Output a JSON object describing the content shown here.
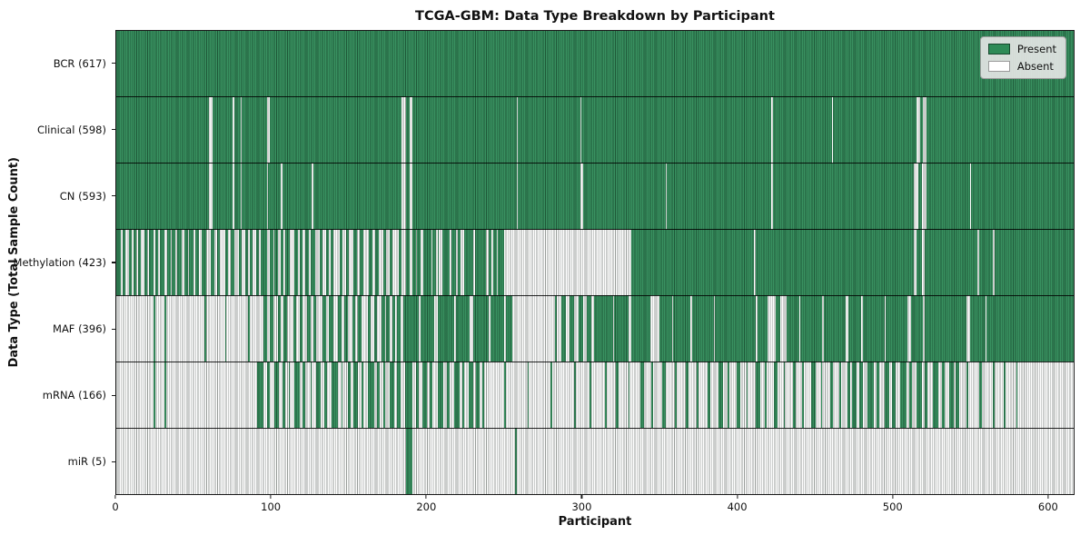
{
  "title": "TCGA-GBM: Data Type Breakdown by Participant",
  "xlabel": "Participant",
  "ylabel": "Data Type (Total Sample Count)",
  "legend": {
    "present_label": "Present",
    "absent_label": "Absent"
  },
  "colors": {
    "present": "#2E8B57",
    "absent": "#FFFFFF",
    "legend_bg": "#E8E8E8",
    "frame": "#1A1A1A"
  },
  "chart_data": {
    "type": "heatmap",
    "title": "TCGA-GBM: Data Type Breakdown by Participant",
    "xlabel": "Participant",
    "ylabel": "Data Type (Total Sample Count)",
    "legend_entries": [
      "Present",
      "Absent"
    ],
    "legend_position": "upper right",
    "n_participants": 617,
    "x_ticks": [
      0,
      100,
      200,
      300,
      400,
      500,
      600
    ],
    "cell_values": "binary presence (1 = Present, 0 = Absent) per participant per data type",
    "rows": [
      {
        "name": "BCR",
        "label": "BCR (617)",
        "present_count": 617,
        "mode": "absent-runs",
        "runs": []
      },
      {
        "name": "Clinical",
        "label": "Clinical (598)",
        "present_count": 598,
        "mode": "absent-runs",
        "runs": [
          [
            60,
            2
          ],
          [
            75,
            1
          ],
          [
            80,
            1
          ],
          [
            97,
            2
          ],
          [
            184,
            3
          ],
          [
            189,
            2
          ],
          [
            258,
            1
          ],
          [
            299,
            1
          ],
          [
            422,
            1
          ],
          [
            461,
            1
          ],
          [
            516,
            2
          ],
          [
            520,
            2
          ]
        ]
      },
      {
        "name": "CN",
        "label": "CN (593)",
        "present_count": 593,
        "mode": "absent-runs",
        "runs": [
          [
            60,
            2
          ],
          [
            75,
            1
          ],
          [
            80,
            1
          ],
          [
            97,
            1
          ],
          [
            106,
            1
          ],
          [
            126,
            1
          ],
          [
            184,
            3
          ],
          [
            189,
            2
          ],
          [
            258,
            1
          ],
          [
            299,
            2
          ],
          [
            354,
            1
          ],
          [
            422,
            1
          ],
          [
            514,
            3
          ],
          [
            519,
            3
          ],
          [
            550,
            1
          ]
        ]
      },
      {
        "name": "Methylation",
        "label": "Methylation (423)",
        "present_count": 423,
        "mode": "absent-runs",
        "runs": [
          [
            3,
            1
          ],
          [
            6,
            2
          ],
          [
            10,
            1
          ],
          [
            13,
            1
          ],
          [
            16,
            2
          ],
          [
            20,
            1
          ],
          [
            24,
            1
          ],
          [
            27,
            1
          ],
          [
            31,
            2
          ],
          [
            35,
            1
          ],
          [
            38,
            1
          ],
          [
            42,
            2
          ],
          [
            46,
            1
          ],
          [
            50,
            1
          ],
          [
            53,
            2
          ],
          [
            58,
            3
          ],
          [
            63,
            2
          ],
          [
            67,
            3
          ],
          [
            72,
            2
          ],
          [
            76,
            3
          ],
          [
            81,
            2
          ],
          [
            85,
            1
          ],
          [
            88,
            2
          ],
          [
            92,
            1
          ],
          [
            97,
            2
          ],
          [
            101,
            1
          ],
          [
            104,
            2
          ],
          [
            108,
            1
          ],
          [
            112,
            3
          ],
          [
            117,
            1
          ],
          [
            120,
            2
          ],
          [
            124,
            1
          ],
          [
            128,
            3
          ],
          [
            133,
            2
          ],
          [
            137,
            1
          ],
          [
            140,
            4
          ],
          [
            146,
            2
          ],
          [
            150,
            3
          ],
          [
            155,
            2
          ],
          [
            159,
            4
          ],
          [
            165,
            2
          ],
          [
            169,
            3
          ],
          [
            174,
            2
          ],
          [
            178,
            4
          ],
          [
            184,
            3
          ],
          [
            189,
            2
          ],
          [
            193,
            1
          ],
          [
            196,
            2
          ],
          [
            203,
            1
          ],
          [
            206,
            1
          ],
          [
            208,
            2
          ],
          [
            215,
            1
          ],
          [
            219,
            1
          ],
          [
            222,
            2
          ],
          [
            230,
            1
          ],
          [
            238,
            2
          ],
          [
            242,
            1
          ],
          [
            245,
            1
          ],
          [
            250,
            82
          ],
          [
            411,
            1
          ],
          [
            514,
            2
          ],
          [
            519,
            2
          ],
          [
            555,
            1
          ],
          [
            565,
            1
          ]
        ]
      },
      {
        "name": "MAF",
        "label": "MAF (396)",
        "present_count": 396,
        "mode": "absent-runs",
        "runs": [
          [
            0,
            24
          ],
          [
            25,
            6
          ],
          [
            32,
            25
          ],
          [
            58,
            12
          ],
          [
            71,
            14
          ],
          [
            86,
            9
          ],
          [
            97,
            2
          ],
          [
            101,
            3
          ],
          [
            106,
            2
          ],
          [
            110,
            4
          ],
          [
            116,
            2
          ],
          [
            120,
            3
          ],
          [
            125,
            2
          ],
          [
            129,
            4
          ],
          [
            135,
            2
          ],
          [
            140,
            3
          ],
          [
            145,
            2
          ],
          [
            149,
            3
          ],
          [
            154,
            2
          ],
          [
            158,
            4
          ],
          [
            164,
            2
          ],
          [
            168,
            3
          ],
          [
            173,
            1
          ],
          [
            176,
            2
          ],
          [
            180,
            1
          ],
          [
            183,
            2
          ],
          [
            195,
            1
          ],
          [
            205,
            2
          ],
          [
            218,
            1
          ],
          [
            228,
            2
          ],
          [
            240,
            1
          ],
          [
            250,
            1
          ],
          [
            255,
            28
          ],
          [
            284,
            3
          ],
          [
            290,
            2
          ],
          [
            295,
            3
          ],
          [
            301,
            2
          ],
          [
            306,
            2
          ],
          [
            320,
            1
          ],
          [
            330,
            2
          ],
          [
            344,
            6
          ],
          [
            358,
            1
          ],
          [
            370,
            1
          ],
          [
            385,
            1
          ],
          [
            412,
            1
          ],
          [
            420,
            5
          ],
          [
            428,
            4
          ],
          [
            440,
            1
          ],
          [
            455,
            1
          ],
          [
            470,
            2
          ],
          [
            480,
            1
          ],
          [
            495,
            1
          ],
          [
            510,
            2
          ],
          [
            520,
            1
          ],
          [
            548,
            2
          ],
          [
            560,
            1
          ]
        ]
      },
      {
        "name": "mRNA",
        "label": "mRNA (166)",
        "present_count": 166,
        "mode": "present-runs",
        "runs": [
          [
            24,
            1
          ],
          [
            31,
            1
          ],
          [
            91,
            4
          ],
          [
            97,
            2
          ],
          [
            102,
            3
          ],
          [
            107,
            2
          ],
          [
            111,
            1
          ],
          [
            115,
            3
          ],
          [
            120,
            2
          ],
          [
            125,
            1
          ],
          [
            129,
            3
          ],
          [
            134,
            2
          ],
          [
            139,
            4
          ],
          [
            145,
            1
          ],
          [
            149,
            2
          ],
          [
            153,
            3
          ],
          [
            158,
            1
          ],
          [
            162,
            4
          ],
          [
            168,
            2
          ],
          [
            172,
            1
          ],
          [
            176,
            3
          ],
          [
            181,
            2
          ],
          [
            186,
            5
          ],
          [
            193,
            2
          ],
          [
            197,
            3
          ],
          [
            202,
            2
          ],
          [
            207,
            4
          ],
          [
            213,
            2
          ],
          [
            218,
            3
          ],
          [
            223,
            1
          ],
          [
            227,
            3
          ],
          [
            232,
            2
          ],
          [
            236,
            1
          ],
          [
            250,
            1
          ],
          [
            265,
            1
          ],
          [
            280,
            1
          ],
          [
            295,
            1
          ],
          [
            305,
            1
          ],
          [
            315,
            1
          ],
          [
            322,
            2
          ],
          [
            330,
            1
          ],
          [
            338,
            2
          ],
          [
            345,
            1
          ],
          [
            352,
            2
          ],
          [
            360,
            1
          ],
          [
            367,
            2
          ],
          [
            374,
            1
          ],
          [
            381,
            2
          ],
          [
            388,
            3
          ],
          [
            394,
            1
          ],
          [
            400,
            2
          ],
          [
            406,
            1
          ],
          [
            412,
            3
          ],
          [
            418,
            1
          ],
          [
            424,
            2
          ],
          [
            430,
            1
          ],
          [
            436,
            2
          ],
          [
            442,
            1
          ],
          [
            448,
            3
          ],
          [
            454,
            1
          ],
          [
            460,
            2
          ],
          [
            466,
            1
          ],
          [
            471,
            2
          ],
          [
            474,
            3
          ],
          [
            479,
            2
          ],
          [
            484,
            4
          ],
          [
            490,
            2
          ],
          [
            495,
            3
          ],
          [
            500,
            2
          ],
          [
            505,
            4
          ],
          [
            511,
            2
          ],
          [
            516,
            3
          ],
          [
            521,
            2
          ],
          [
            526,
            4
          ],
          [
            532,
            2
          ],
          [
            537,
            3
          ],
          [
            541,
            2
          ],
          [
            548,
            1
          ],
          [
            556,
            2
          ],
          [
            565,
            1
          ],
          [
            572,
            1
          ],
          [
            580,
            1
          ]
        ]
      },
      {
        "name": "miR",
        "label": "miR (5)",
        "present_count": 5,
        "mode": "present-runs",
        "runs": [
          [
            187,
            4
          ],
          [
            257,
            1
          ]
        ]
      }
    ]
  }
}
